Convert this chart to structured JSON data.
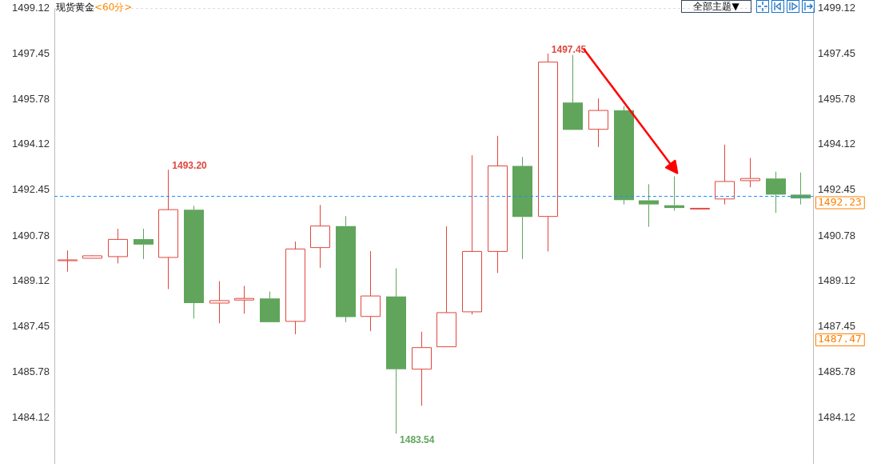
{
  "chart_data": {
    "type": "candlestick",
    "title": "现货黄金",
    "subtitle": "<60分>",
    "categories": [
      null,
      null,
      null,
      null,
      null,
      null,
      null,
      null,
      null,
      null,
      null,
      null,
      null,
      null,
      null,
      null,
      null,
      null,
      null,
      null,
      null,
      null,
      null,
      null,
      null,
      null,
      null,
      null,
      null,
      null
    ],
    "ohlc": [
      [
        1489.89,
        1490.25,
        1489.47,
        1489.9
      ],
      [
        1489.96,
        1490.07,
        1489.96,
        1490.05
      ],
      [
        1490.02,
        1491.04,
        1489.77,
        1490.65
      ],
      [
        1490.66,
        1491.04,
        1489.93,
        1490.46
      ],
      [
        1489.99,
        1493.2,
        1488.83,
        1491.74
      ],
      [
        1491.74,
        1491.88,
        1487.75,
        1488.32
      ],
      [
        1488.32,
        1489.12,
        1487.58,
        1488.41
      ],
      [
        1488.43,
        1488.95,
        1487.93,
        1488.49
      ],
      [
        1488.49,
        1488.74,
        1487.62,
        1487.62
      ],
      [
        1487.65,
        1490.57,
        1487.18,
        1490.3
      ],
      [
        1490.35,
        1491.91,
        1489.61,
        1491.14
      ],
      [
        1491.14,
        1491.5,
        1487.62,
        1487.81
      ],
      [
        1487.83,
        1490.22,
        1487.29,
        1488.58
      ],
      [
        1488.56,
        1489.59,
        1483.54,
        1485.9
      ],
      [
        1485.9,
        1487.27,
        1484.56,
        1486.69
      ],
      [
        1486.72,
        1491.13,
        1486.72,
        1487.97
      ],
      [
        1488.0,
        1493.73,
        1487.9,
        1490.21
      ],
      [
        1490.21,
        1494.44,
        1489.42,
        1493.34
      ],
      [
        1493.34,
        1493.67,
        1489.93,
        1491.47
      ],
      [
        1491.49,
        1497.45,
        1490.21,
        1497.14
      ],
      [
        1495.66,
        1497.4,
        1494.66,
        1494.66
      ],
      [
        1494.68,
        1495.81,
        1494.03,
        1495.37
      ],
      [
        1495.37,
        1495.53,
        1491.93,
        1492.09
      ],
      [
        1492.08,
        1492.67,
        1491.11,
        1491.93
      ],
      [
        1491.9,
        1492.96,
        1491.7,
        1491.8
      ],
      [
        1491.79,
        1491.79,
        1491.79,
        1491.79
      ],
      [
        1492.13,
        1494.12,
        1491.93,
        1492.77
      ],
      [
        1492.8,
        1493.63,
        1492.56,
        1492.88
      ],
      [
        1492.88,
        1493.13,
        1491.62,
        1492.29
      ],
      [
        1492.29,
        1493.1,
        1491.93,
        1492.15
      ]
    ],
    "colors": [
      "#e0463e",
      "#e0463e",
      "#e0463e",
      "#60a55b",
      "#e0463e",
      "#60a55b",
      "#e0463e",
      "#e0463e",
      "#60a55b",
      "#e0463e",
      "#e0463e",
      "#60a55b",
      "#e0463e",
      "#60a55b",
      "#e0463e",
      "#e0463e",
      "#e0463e",
      "#e0463e",
      "#60a55b",
      "#e0463e",
      "#60a55b",
      "#e0463e",
      "#60a55b",
      "#60a55b",
      "#60a55b",
      "#e0463e",
      "#e0463e",
      "#e0463e",
      "#60a55b",
      "#60a55b"
    ],
    "ylim": [
      1482.46,
      1499.12
    ],
    "yticks": [
      1484.12,
      1485.78,
      1487.45,
      1489.12,
      1490.78,
      1492.45,
      1494.12,
      1495.78,
      1497.45,
      1499.12
    ],
    "y2lim": [
      1482.46,
      1499.12
    ],
    "y2ticks": [
      1484.12,
      1485.78,
      1487.45,
      1489.12,
      1490.78,
      1492.45,
      1494.12,
      1495.78,
      1497.45,
      1499.12
    ],
    "ref_lines": [
      {
        "axis": "y",
        "value": 1492.23,
        "label": "1492.23",
        "color": "#1e90ff",
        "line_style": "dashed"
      }
    ],
    "annotations": [
      "1493.20",
      "1497.45",
      "1483.54",
      "1487.47",
      "全部主题▼"
    ]
  }
}
